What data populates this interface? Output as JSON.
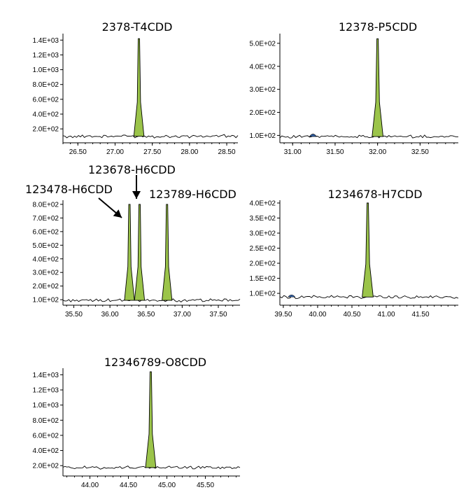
{
  "colors": {
    "peak_fill": "#9bc44a",
    "small_peak_fill": "#2f5c9e",
    "line": "#000000"
  },
  "chart_data": [
    {
      "type": "line",
      "title": "2378-T4CDD",
      "xlim": [
        26.3,
        28.65
      ],
      "ylim": [
        50,
        1450
      ],
      "xticks": [
        "26.50",
        "27.00",
        "27.50",
        "28.00",
        "28.50"
      ],
      "yticks": [
        "2.0E+02",
        "4.0E+02",
        "6.0E+02",
        "8.0E+02",
        "1.0E+03",
        "1.2E+03",
        "1.4E+03"
      ],
      "baseline": 100,
      "peaks": [
        {
          "x": 27.32,
          "height": 1420,
          "width": 0.04
        }
      ],
      "small_peaks": []
    },
    {
      "type": "line",
      "title": "12378-P5CDD",
      "xlim": [
        30.85,
        32.95
      ],
      "ylim": [
        80,
        530
      ],
      "xticks": [
        "31.00",
        "31.50",
        "32.00",
        "32.50"
      ],
      "yticks": [
        "1.0E+02",
        "2.0E+02",
        "3.0E+02",
        "4.0E+02",
        "5.0E+02"
      ],
      "baseline": 95,
      "peaks": [
        {
          "x": 32.0,
          "height": 520,
          "width": 0.04
        }
      ],
      "small_peaks": [
        {
          "x": 31.24,
          "height": 108
        }
      ]
    },
    {
      "type": "line",
      "title": "",
      "xlim": [
        35.35,
        37.8
      ],
      "ylim": [
        80,
        810
      ],
      "xticks": [
        "35.50",
        "36.00",
        "36.50",
        "37.00",
        "37.50"
      ],
      "yticks": [
        "1.0E+02",
        "2.0E+02",
        "3.0E+02",
        "4.0E+02",
        "5.0E+02",
        "6.0E+02",
        "7.0E+02",
        "8.0E+02"
      ],
      "baseline": 95,
      "peaks": [
        {
          "x": 36.27,
          "height": 800,
          "width": 0.04
        },
        {
          "x": 36.41,
          "height": 800,
          "width": 0.04
        },
        {
          "x": 36.79,
          "height": 800,
          "width": 0.04
        }
      ],
      "small_peaks": [],
      "annotations": [
        {
          "text": "123678-H6CDD",
          "peak_index": 1
        },
        {
          "text": "123478-H6CDD",
          "peak_index": 0
        },
        {
          "text": "123789-H6CDD",
          "peak_index": 2
        }
      ]
    },
    {
      "type": "line",
      "title": "1234678-H7CDD",
      "xlim": [
        39.45,
        42.05
      ],
      "ylim": [
        70,
        400
      ],
      "xticks": [
        "39.50",
        "40.00",
        "40.50",
        "41.00",
        "41.50"
      ],
      "yticks": [
        "1.0E+02",
        "1.5E+02",
        "2.0E+02",
        "2.5E+02",
        "3.0E+02",
        "3.5E+02",
        "4.0E+02"
      ],
      "baseline": 88,
      "peaks": [
        {
          "x": 40.73,
          "height": 400,
          "width": 0.05
        }
      ],
      "small_peaks": [
        {
          "x": 39.62,
          "height": 95
        }
      ]
    },
    {
      "type": "line",
      "title": "12346789-O8CDD",
      "xlim": [
        43.65,
        45.95
      ],
      "ylim": [
        100,
        1450
      ],
      "xticks": [
        "44.00",
        "44.50",
        "45.00",
        "45.50"
      ],
      "yticks": [
        "2.0E+02",
        "4.0E+02",
        "6.0E+02",
        "8.0E+02",
        "1.0E+03",
        "1.2E+03",
        "1.4E+03"
      ],
      "baseline": 175,
      "peaks": [
        {
          "x": 44.79,
          "height": 1440,
          "width": 0.04
        }
      ],
      "small_peaks": []
    }
  ]
}
